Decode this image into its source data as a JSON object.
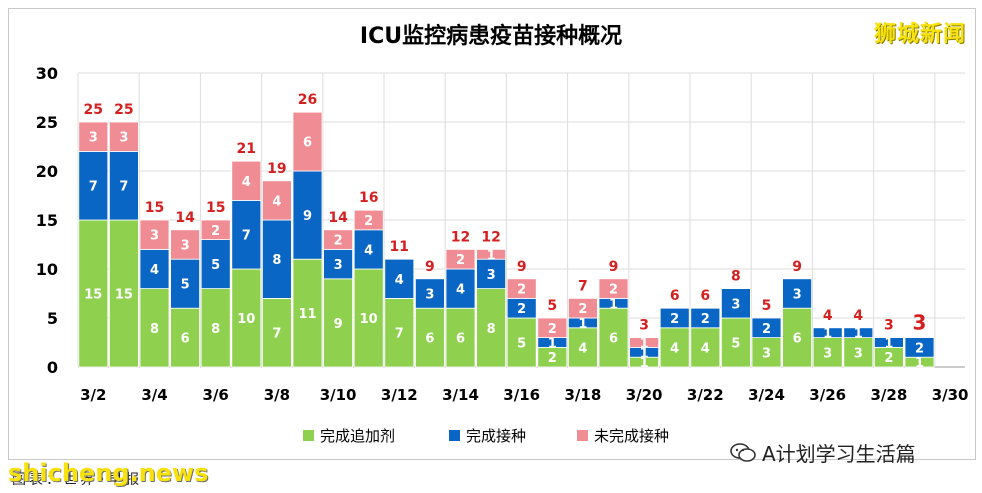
{
  "watermarks": {
    "top_right": "狮城新闻",
    "bottom_left": "shicheng.news"
  },
  "source_text": "图表：世界•早报",
  "wechat_account": "A计划学习生活篇",
  "colors": {
    "booster": "#8fd14f",
    "vaccinated": "#0966c4",
    "unvaccinated": "#f08c94",
    "total_label": "#d42020",
    "axis_text": "#000000",
    "grid": "#dcdcdc"
  },
  "chart_data": {
    "type": "bar",
    "stacked": true,
    "title": "ICU监控病患疫苗接种概况",
    "xlabel": "",
    "ylabel": "",
    "ylim": [
      0,
      30
    ],
    "yticks": [
      0,
      5,
      10,
      15,
      20,
      25,
      30
    ],
    "grid": true,
    "legend_position": "bottom",
    "categories": [
      "3/2",
      "3/3",
      "3/4",
      "3/5",
      "3/6",
      "3/7",
      "3/8",
      "3/9",
      "3/10",
      "3/11",
      "3/12",
      "3/13",
      "3/14",
      "3/15",
      "3/16",
      "3/17",
      "3/18",
      "3/19",
      "3/20",
      "3/21",
      "3/22",
      "3/23",
      "3/24",
      "3/25",
      "3/26",
      "3/27",
      "3/28",
      "3/29"
    ],
    "x_tick_labels": [
      "3/2",
      "3/4",
      "3/6",
      "3/8",
      "3/10",
      "3/12",
      "3/14",
      "3/16",
      "3/18",
      "3/20",
      "3/22",
      "3/24",
      "3/26",
      "3/28",
      "3/30"
    ],
    "series": [
      {
        "name": "完成追加剂",
        "color": "#8fd14f",
        "values": [
          15,
          15,
          8,
          6,
          8,
          10,
          7,
          11,
          9,
          10,
          7,
          6,
          6,
          8,
          5,
          2,
          4,
          6,
          1,
          4,
          4,
          5,
          3,
          6,
          3,
          3,
          2,
          1
        ]
      },
      {
        "name": "完成接种",
        "color": "#0966c4",
        "values": [
          7,
          7,
          4,
          5,
          5,
          7,
          8,
          9,
          3,
          4,
          4,
          3,
          4,
          3,
          2,
          1,
          1,
          1,
          1,
          2,
          2,
          3,
          2,
          3,
          1,
          1,
          1,
          2
        ]
      },
      {
        "name": "未完成接种",
        "color": "#f08c94",
        "values": [
          3,
          3,
          3,
          3,
          2,
          4,
          4,
          6,
          2,
          2,
          0,
          0,
          2,
          1,
          2,
          2,
          2,
          2,
          1,
          0,
          0,
          0,
          0,
          0,
          0,
          0,
          0,
          0
        ]
      }
    ],
    "totals": [
      25,
      25,
      15,
      14,
      15,
      21,
      19,
      26,
      14,
      16,
      11,
      9,
      12,
      12,
      9,
      5,
      7,
      9,
      3,
      6,
      6,
      8,
      5,
      9,
      4,
      4,
      3,
      3
    ]
  }
}
